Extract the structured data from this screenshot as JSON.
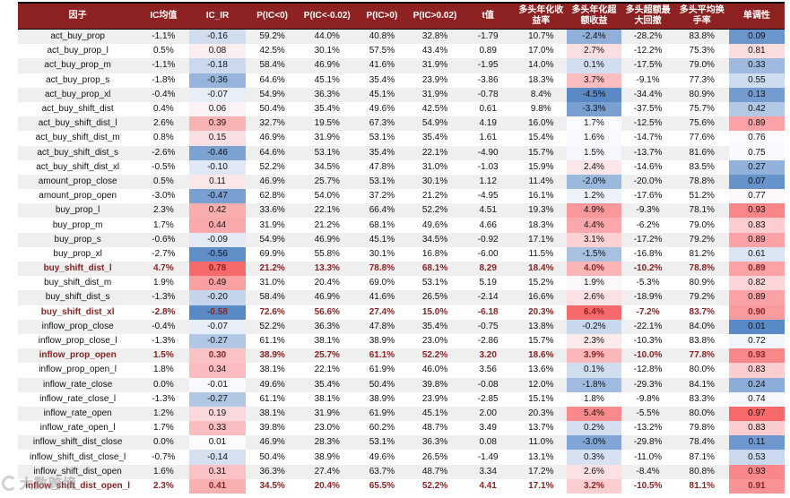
{
  "colors": {
    "header_bg": "#8E2222",
    "header_text": "#FFFFFF",
    "stripe": "#EFEFEF",
    "highlight_text": "#8B2323",
    "scale_red": "#F8696B",
    "scale_white": "#FCFCFF",
    "scale_blue": "#5A8AC6"
  },
  "watermark": {
    "text": "大数跨境",
    "logo": "ring-icon"
  },
  "chart_data": {
    "type": "table",
    "columns": [
      {
        "key": "factor",
        "label": "因子"
      },
      {
        "key": "ic_mean",
        "label": "IC均值"
      },
      {
        "key": "ic_ir",
        "label": "IC_IR"
      },
      {
        "key": "p_lt_0",
        "label": "P(IC<0)"
      },
      {
        "key": "p_lt_n002",
        "label": "P(IC<-0.02)"
      },
      {
        "key": "p_gt_0",
        "label": "P(IC>0)"
      },
      {
        "key": "p_gt_002",
        "label": "P(IC>0.02)"
      },
      {
        "key": "t_value",
        "label": "t值"
      },
      {
        "key": "long_ann_return",
        "label": "多头年化收益率"
      },
      {
        "key": "long_excess_return",
        "label": "多头年化超额收益"
      },
      {
        "key": "long_excess_mdd",
        "label": "多头超额最大回撤"
      },
      {
        "key": "long_turnover",
        "label": "多头平均换手率"
      },
      {
        "key": "monotonicity",
        "label": "单调性"
      }
    ],
    "color_scales": {
      "ic_ir": {
        "min": -0.58,
        "mid": 0,
        "max": 0.78
      },
      "long_excess_return": {
        "min": -4.5,
        "mid": 1.75,
        "max": 6.4
      },
      "monotonicity": {
        "min": 0.01,
        "mid": 0.765,
        "max": 0.97
      }
    },
    "highlight_rows": [
      "buy_shift_dist_l",
      "buy_shift_dist_xl",
      "inflow_prop_open",
      "inflow_shift_dist_open_l"
    ],
    "rows": [
      {
        "factor": "act_buy_prop",
        "ic_mean": "-1.1%",
        "ic_ir": "-0.16",
        "p_lt_0": "59.2%",
        "p_lt_n002": "44.0%",
        "p_gt_0": "40.8%",
        "p_gt_002": "32.8%",
        "t_value": "-1.79",
        "long_ann_return": "10.7%",
        "long_excess_return": "-2.4%",
        "long_excess_mdd": "-28.2%",
        "long_turnover": "83.8%",
        "monotonicity": "0.09"
      },
      {
        "factor": "act_buy_prop_l",
        "ic_mean": "0.5%",
        "ic_ir": "0.08",
        "p_lt_0": "42.5%",
        "p_lt_n002": "30.1%",
        "p_gt_0": "57.5%",
        "p_gt_002": "43.4%",
        "t_value": "0.89",
        "long_ann_return": "17.0%",
        "long_excess_return": "2.7%",
        "long_excess_mdd": "-12.2%",
        "long_turnover": "75.3%",
        "monotonicity": "0.81"
      },
      {
        "factor": "act_buy_prop_m",
        "ic_mean": "-1.1%",
        "ic_ir": "-0.18",
        "p_lt_0": "58.4%",
        "p_lt_n002": "46.9%",
        "p_gt_0": "41.6%",
        "p_gt_002": "31.9%",
        "t_value": "-1.95",
        "long_ann_return": "14.0%",
        "long_excess_return": "0.1%",
        "long_excess_mdd": "-17.5%",
        "long_turnover": "79.0%",
        "monotonicity": "0.33"
      },
      {
        "factor": "act_buy_prop_s",
        "ic_mean": "-1.8%",
        "ic_ir": "-0.36",
        "p_lt_0": "64.6%",
        "p_lt_n002": "45.1%",
        "p_gt_0": "35.4%",
        "p_gt_002": "23.9%",
        "t_value": "-3.86",
        "long_ann_return": "18.3%",
        "long_excess_return": "3.7%",
        "long_excess_mdd": "-9.1%",
        "long_turnover": "77.3%",
        "monotonicity": "0.55"
      },
      {
        "factor": "act_buy_prop_xl",
        "ic_mean": "-0.4%",
        "ic_ir": "-0.07",
        "p_lt_0": "54.9%",
        "p_lt_n002": "36.3%",
        "p_gt_0": "45.1%",
        "p_gt_002": "31.9%",
        "t_value": "-0.78",
        "long_ann_return": "8.4%",
        "long_excess_return": "-4.5%",
        "long_excess_mdd": "-34.4%",
        "long_turnover": "80.9%",
        "monotonicity": "0.13"
      },
      {
        "factor": "act_buy_shift_dist",
        "ic_mean": "0.4%",
        "ic_ir": "0.06",
        "p_lt_0": "50.4%",
        "p_lt_n002": "35.4%",
        "p_gt_0": "49.6%",
        "p_gt_002": "42.5%",
        "t_value": "0.61",
        "long_ann_return": "9.8%",
        "long_excess_return": "-3.3%",
        "long_excess_mdd": "-37.5%",
        "long_turnover": "75.7%",
        "monotonicity": "0.42"
      },
      {
        "factor": "act_buy_shift_dist_l",
        "ic_mean": "2.6%",
        "ic_ir": "0.39",
        "p_lt_0": "32.7%",
        "p_lt_n002": "19.5%",
        "p_gt_0": "67.3%",
        "p_gt_002": "54.9%",
        "t_value": "4.19",
        "long_ann_return": "16.0%",
        "long_excess_return": "1.7%",
        "long_excess_mdd": "-12.5%",
        "long_turnover": "75.6%",
        "monotonicity": "0.89"
      },
      {
        "factor": "act_buy_shift_dist_m",
        "ic_mean": "0.8%",
        "ic_ir": "0.15",
        "p_lt_0": "46.9%",
        "p_lt_n002": "31.9%",
        "p_gt_0": "53.1%",
        "p_gt_002": "35.4%",
        "t_value": "1.61",
        "long_ann_return": "15.4%",
        "long_excess_return": "1.6%",
        "long_excess_mdd": "-14.7%",
        "long_turnover": "77.6%",
        "monotonicity": "0.76"
      },
      {
        "factor": "act_buy_shift_dist_s",
        "ic_mean": "-2.6%",
        "ic_ir": "-0.46",
        "p_lt_0": "64.6%",
        "p_lt_n002": "53.1%",
        "p_gt_0": "35.4%",
        "p_gt_002": "22.1%",
        "t_value": "-4.90",
        "long_ann_return": "15.7%",
        "long_excess_return": "1.5%",
        "long_excess_mdd": "-13.7%",
        "long_turnover": "81.6%",
        "monotonicity": "0.75"
      },
      {
        "factor": "act_buy_shift_dist_xl",
        "ic_mean": "-0.5%",
        "ic_ir": "-0.10",
        "p_lt_0": "52.2%",
        "p_lt_n002": "34.5%",
        "p_gt_0": "47.8%",
        "p_gt_002": "31.0%",
        "t_value": "-1.03",
        "long_ann_return": "15.9%",
        "long_excess_return": "2.4%",
        "long_excess_mdd": "-14.6%",
        "long_turnover": "83.5%",
        "monotonicity": "0.27"
      },
      {
        "factor": "amount_prop_close",
        "ic_mean": "0.5%",
        "ic_ir": "0.11",
        "p_lt_0": "46.9%",
        "p_lt_n002": "25.7%",
        "p_gt_0": "53.1%",
        "p_gt_002": "30.1%",
        "t_value": "1.12",
        "long_ann_return": "11.4%",
        "long_excess_return": "-2.0%",
        "long_excess_mdd": "-20.0%",
        "long_turnover": "78.8%",
        "monotonicity": "0.07"
      },
      {
        "factor": "amount_prop_open",
        "ic_mean": "-3.0%",
        "ic_ir": "-0.47",
        "p_lt_0": "62.8%",
        "p_lt_n002": "54.0%",
        "p_gt_0": "37.2%",
        "p_gt_002": "21.2%",
        "t_value": "-4.95",
        "long_ann_return": "16.1%",
        "long_excess_return": "1.2%",
        "long_excess_mdd": "-17.6%",
        "long_turnover": "51.2%",
        "monotonicity": "0.77"
      },
      {
        "factor": "buy_prop_l",
        "ic_mean": "2.3%",
        "ic_ir": "0.42",
        "p_lt_0": "33.6%",
        "p_lt_n002": "22.1%",
        "p_gt_0": "66.4%",
        "p_gt_002": "52.2%",
        "t_value": "4.51",
        "long_ann_return": "19.3%",
        "long_excess_return": "4.9%",
        "long_excess_mdd": "-9.3%",
        "long_turnover": "78.1%",
        "monotonicity": "0.93"
      },
      {
        "factor": "buy_prop_m",
        "ic_mean": "1.7%",
        "ic_ir": "0.44",
        "p_lt_0": "31.9%",
        "p_lt_n002": "21.2%",
        "p_gt_0": "68.1%",
        "p_gt_002": "49.6%",
        "t_value": "4.66",
        "long_ann_return": "18.3%",
        "long_excess_return": "4.4%",
        "long_excess_mdd": "-6.2%",
        "long_turnover": "79.0%",
        "monotonicity": "0.83"
      },
      {
        "factor": "buy_prop_s",
        "ic_mean": "-0.6%",
        "ic_ir": "-0.09",
        "p_lt_0": "54.9%",
        "p_lt_n002": "46.9%",
        "p_gt_0": "45.1%",
        "p_gt_002": "34.5%",
        "t_value": "-0.92",
        "long_ann_return": "17.1%",
        "long_excess_return": "3.1%",
        "long_excess_mdd": "-17.2%",
        "long_turnover": "79.2%",
        "monotonicity": "0.89"
      },
      {
        "factor": "buy_prop_xl",
        "ic_mean": "-2.7%",
        "ic_ir": "-0.56",
        "p_lt_0": "69.9%",
        "p_lt_n002": "55.8%",
        "p_gt_0": "30.1%",
        "p_gt_002": "16.8%",
        "t_value": "-6.00",
        "long_ann_return": "11.5%",
        "long_excess_return": "-1.5%",
        "long_excess_mdd": "-16.8%",
        "long_turnover": "81.2%",
        "monotonicity": "0.61"
      },
      {
        "factor": "buy_shift_dist_l",
        "ic_mean": "4.7%",
        "ic_ir": "0.78",
        "p_lt_0": "21.2%",
        "p_lt_n002": "13.3%",
        "p_gt_0": "78.8%",
        "p_gt_002": "68.1%",
        "t_value": "8.29",
        "long_ann_return": "18.4%",
        "long_excess_return": "4.0%",
        "long_excess_mdd": "-10.2%",
        "long_turnover": "78.8%",
        "monotonicity": "0.89"
      },
      {
        "factor": "buy_shift_dist_m",
        "ic_mean": "1.9%",
        "ic_ir": "0.49",
        "p_lt_0": "31.0%",
        "p_lt_n002": "20.4%",
        "p_gt_0": "69.0%",
        "p_gt_002": "53.1%",
        "t_value": "5.19",
        "long_ann_return": "15.2%",
        "long_excess_return": "1.9%",
        "long_excess_mdd": "-5.3%",
        "long_turnover": "80.9%",
        "monotonicity": "0.82"
      },
      {
        "factor": "buy_shift_dist_s",
        "ic_mean": "-1.3%",
        "ic_ir": "-0.20",
        "p_lt_0": "58.4%",
        "p_lt_n002": "46.9%",
        "p_gt_0": "41.6%",
        "p_gt_002": "26.5%",
        "t_value": "-2.14",
        "long_ann_return": "16.6%",
        "long_excess_return": "2.6%",
        "long_excess_mdd": "-18.9%",
        "long_turnover": "79.2%",
        "monotonicity": "0.89"
      },
      {
        "factor": "buy_shift_dist_xl",
        "ic_mean": "-2.8%",
        "ic_ir": "-0.58",
        "p_lt_0": "72.6%",
        "p_lt_n002": "56.6%",
        "p_gt_0": "27.4%",
        "p_gt_002": "15.0%",
        "t_value": "-6.18",
        "long_ann_return": "20.3%",
        "long_excess_return": "6.4%",
        "long_excess_mdd": "-7.2%",
        "long_turnover": "83.7%",
        "monotonicity": "0.90"
      },
      {
        "factor": "inflow_prop_close",
        "ic_mean": "-0.4%",
        "ic_ir": "-0.07",
        "p_lt_0": "52.2%",
        "p_lt_n002": "36.3%",
        "p_gt_0": "47.8%",
        "p_gt_002": "35.4%",
        "t_value": "-0.75",
        "long_ann_return": "13.8%",
        "long_excess_return": "-0.2%",
        "long_excess_mdd": "-22.1%",
        "long_turnover": "84.0%",
        "monotonicity": "0.01"
      },
      {
        "factor": "inflow_prop_close_l",
        "ic_mean": "-1.3%",
        "ic_ir": "-0.27",
        "p_lt_0": "61.1%",
        "p_lt_n002": "38.1%",
        "p_gt_0": "38.9%",
        "p_gt_002": "23.0%",
        "t_value": "-2.86",
        "long_ann_return": "15.7%",
        "long_excess_return": "2.3%",
        "long_excess_mdd": "-10.3%",
        "long_turnover": "83.8%",
        "monotonicity": "0.72"
      },
      {
        "factor": "inflow_prop_open",
        "ic_mean": "1.5%",
        "ic_ir": "0.30",
        "p_lt_0": "38.9%",
        "p_lt_n002": "25.7%",
        "p_gt_0": "61.1%",
        "p_gt_002": "52.2%",
        "t_value": "3.20",
        "long_ann_return": "18.6%",
        "long_excess_return": "3.9%",
        "long_excess_mdd": "-10.0%",
        "long_turnover": "77.8%",
        "monotonicity": "0.93"
      },
      {
        "factor": "inflow_prop_open_l",
        "ic_mean": "1.8%",
        "ic_ir": "0.34",
        "p_lt_0": "38.1%",
        "p_lt_n002": "22.1%",
        "p_gt_0": "61.9%",
        "p_gt_002": "46.0%",
        "t_value": "3.56",
        "long_ann_return": "13.6%",
        "long_excess_return": "0.1%",
        "long_excess_mdd": "-12.8%",
        "long_turnover": "80.0%",
        "monotonicity": "0.83"
      },
      {
        "factor": "inflow_rate_close",
        "ic_mean": "0.0%",
        "ic_ir": "-0.01",
        "p_lt_0": "49.6%",
        "p_lt_n002": "35.4%",
        "p_gt_0": "50.4%",
        "p_gt_002": "39.8%",
        "t_value": "-0.08",
        "long_ann_return": "12.0%",
        "long_excess_return": "-1.8%",
        "long_excess_mdd": "-29.3%",
        "long_turnover": "84.1%",
        "monotonicity": "0.24"
      },
      {
        "factor": "inflow_rate_close_l",
        "ic_mean": "-1.3%",
        "ic_ir": "-0.27",
        "p_lt_0": "61.1%",
        "p_lt_n002": "38.1%",
        "p_gt_0": "38.9%",
        "p_gt_002": "23.9%",
        "t_value": "-2.85",
        "long_ann_return": "15.1%",
        "long_excess_return": "1.8%",
        "long_excess_mdd": "-9.8%",
        "long_turnover": "83.3%",
        "monotonicity": "0.74"
      },
      {
        "factor": "inflow_rate_open",
        "ic_mean": "1.2%",
        "ic_ir": "0.19",
        "p_lt_0": "38.1%",
        "p_lt_n002": "31.9%",
        "p_gt_0": "61.9%",
        "p_gt_002": "45.1%",
        "t_value": "2.00",
        "long_ann_return": "20.3%",
        "long_excess_return": "5.4%",
        "long_excess_mdd": "-5.5%",
        "long_turnover": "80.0%",
        "monotonicity": "0.97"
      },
      {
        "factor": "inflow_rate_open_l",
        "ic_mean": "1.7%",
        "ic_ir": "0.33",
        "p_lt_0": "39.8%",
        "p_lt_n002": "23.0%",
        "p_gt_0": "60.2%",
        "p_gt_002": "48.7%",
        "t_value": "3.49",
        "long_ann_return": "13.7%",
        "long_excess_return": "0.2%",
        "long_excess_mdd": "-13.2%",
        "long_turnover": "79.8%",
        "monotonicity": "0.83"
      },
      {
        "factor": "inflow_shift_dist_close",
        "ic_mean": "0.0%",
        "ic_ir": "0.01",
        "p_lt_0": "46.9%",
        "p_lt_n002": "28.3%",
        "p_gt_0": "53.1%",
        "p_gt_002": "36.3%",
        "t_value": "0.08",
        "long_ann_return": "11.0%",
        "long_excess_return": "-3.0%",
        "long_excess_mdd": "-29.8%",
        "long_turnover": "78.4%",
        "monotonicity": "0.11"
      },
      {
        "factor": "inflow_shift_dist_close_l",
        "ic_mean": "-0.7%",
        "ic_ir": "-0.14",
        "p_lt_0": "50.4%",
        "p_lt_n002": "38.9%",
        "p_gt_0": "49.6%",
        "p_gt_002": "26.5%",
        "t_value": "-1.49",
        "long_ann_return": "13.1%",
        "long_excess_return": "0.3%",
        "long_excess_mdd": "-11.0%",
        "long_turnover": "87.1%",
        "monotonicity": "0.53"
      },
      {
        "factor": "inflow_shift_dist_open",
        "ic_mean": "1.6%",
        "ic_ir": "0.31",
        "p_lt_0": "36.3%",
        "p_lt_n002": "27.4%",
        "p_gt_0": "63.7%",
        "p_gt_002": "48.7%",
        "t_value": "3.34",
        "long_ann_return": "17.2%",
        "long_excess_return": "2.6%",
        "long_excess_mdd": "-8.4%",
        "long_turnover": "80.8%",
        "monotonicity": "0.93"
      },
      {
        "factor": "inflow_shift_dist_open_l",
        "ic_mean": "2.3%",
        "ic_ir": "0.41",
        "p_lt_0": "34.5%",
        "p_lt_n002": "20.4%",
        "p_gt_0": "65.5%",
        "p_gt_002": "52.2%",
        "t_value": "4.41",
        "long_ann_return": "17.1%",
        "long_excess_return": "3.2%",
        "long_excess_mdd": "-10.5%",
        "long_turnover": "81.1%",
        "monotonicity": "0.91"
      }
    ]
  }
}
